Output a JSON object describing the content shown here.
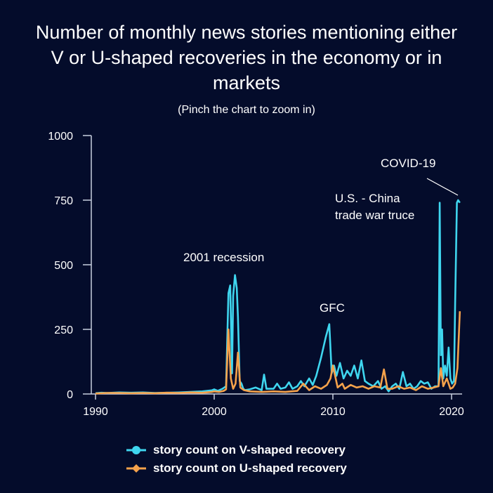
{
  "header": {
    "title": "Number of monthly news stories mentioning either V or U-shaped recoveries in the economy or in markets",
    "subtitle": "(Pinch the chart to zoom in)"
  },
  "chart_data": {
    "type": "line",
    "title": "Number of monthly news stories mentioning either V or U-shaped recoveries in the economy or in markets",
    "subtitle": "(Pinch the chart to zoom in)",
    "xlabel": "",
    "ylabel": "",
    "xlim": [
      1990,
      2021
    ],
    "ylim": [
      0,
      1000
    ],
    "xticks": [
      1990,
      2000,
      2010,
      2020
    ],
    "yticks": [
      0,
      250,
      500,
      750,
      1000
    ],
    "grid": false,
    "legend_position": "bottom",
    "series": [
      {
        "name": "story count on V-shaped recovery",
        "color": "#3fd6ef",
        "x": [
          1990.0,
          1990.5,
          1991.0,
          1992.0,
          1993.0,
          1994.0,
          1995.0,
          1996.0,
          1997.0,
          1998.0,
          1999.0,
          1999.8,
          2000.0,
          2000.3,
          2000.7,
          2001.0,
          2001.2,
          2001.35,
          2001.5,
          2001.6,
          2001.75,
          2001.9,
          2002.0,
          2002.15,
          2002.3,
          2002.45,
          2002.6,
          2003.0,
          2003.5,
          2004.0,
          2004.2,
          2004.4,
          2005.0,
          2005.3,
          2005.6,
          2006.0,
          2006.3,
          2006.6,
          2007.0,
          2007.3,
          2007.6,
          2008.0,
          2008.3,
          2008.6,
          2009.0,
          2009.4,
          2009.7,
          2009.9,
          2010.1,
          2010.3,
          2010.6,
          2010.9,
          2011.2,
          2011.5,
          2011.8,
          2012.1,
          2012.4,
          2012.7,
          2013.0,
          2013.4,
          2013.8,
          2014.1,
          2014.4,
          2014.7,
          2015.0,
          2015.3,
          2015.6,
          2015.9,
          2016.2,
          2016.5,
          2016.8,
          2017.1,
          2017.4,
          2017.7,
          2018.0,
          2018.3,
          2018.6,
          2018.9,
          2019.0,
          2019.1,
          2019.2,
          2019.3,
          2019.45,
          2019.6,
          2019.75,
          2019.9,
          2020.05,
          2020.2,
          2020.3,
          2020.45,
          2020.55,
          2020.7
        ],
        "y": [
          3,
          5,
          4,
          6,
          5,
          6,
          4,
          5,
          6,
          8,
          10,
          14,
          18,
          12,
          20,
          30,
          390,
          420,
          80,
          380,
          460,
          410,
          300,
          50,
          40,
          20,
          15,
          18,
          25,
          15,
          75,
          20,
          20,
          40,
          20,
          25,
          45,
          20,
          30,
          50,
          30,
          60,
          35,
          70,
          140,
          220,
          270,
          80,
          110,
          70,
          120,
          60,
          90,
          70,
          110,
          60,
          130,
          50,
          40,
          30,
          50,
          20,
          30,
          10,
          30,
          40,
          20,
          85,
          30,
          40,
          20,
          30,
          50,
          40,
          45,
          20,
          30,
          30,
          740,
          150,
          250,
          60,
          110,
          70,
          180,
          60,
          40,
          50,
          350,
          740,
          750,
          740
        ]
      },
      {
        "name": "story count on U-shaped recovery",
        "color": "#f5a24b",
        "x": [
          1990.0,
          1990.5,
          1991.0,
          1992.0,
          1993.0,
          1994.0,
          1995.0,
          1996.0,
          1997.0,
          1998.0,
          1999.0,
          1999.8,
          2000.0,
          2000.4,
          2000.8,
          2001.0,
          2001.2,
          2001.4,
          2001.6,
          2001.8,
          2002.0,
          2002.2,
          2002.5,
          2003.0,
          2004.0,
          2005.0,
          2006.0,
          2007.0,
          2007.5,
          2008.0,
          2008.5,
          2009.0,
          2009.5,
          2009.8,
          2010.0,
          2010.4,
          2010.8,
          2011.0,
          2011.5,
          2012.0,
          2012.5,
          2013.0,
          2013.5,
          2014.0,
          2014.3,
          2014.6,
          2015.0,
          2015.5,
          2016.0,
          2016.5,
          2017.0,
          2017.5,
          2018.0,
          2018.5,
          2018.9,
          2019.1,
          2019.3,
          2019.6,
          2019.9,
          2020.1,
          2020.3,
          2020.5,
          2020.7
        ],
        "y": [
          2,
          3,
          4,
          4,
          3,
          4,
          3,
          5,
          4,
          6,
          5,
          8,
          10,
          8,
          12,
          18,
          250,
          60,
          20,
          40,
          160,
          25,
          15,
          10,
          8,
          10,
          8,
          12,
          40,
          15,
          30,
          20,
          35,
          60,
          110,
          25,
          40,
          20,
          35,
          25,
          30,
          20,
          30,
          25,
          95,
          20,
          20,
          30,
          20,
          25,
          15,
          30,
          20,
          25,
          30,
          100,
          30,
          60,
          20,
          25,
          40,
          100,
          320
        ]
      }
    ],
    "annotations": [
      {
        "text": "2001 recession"
      },
      {
        "text": "GFC"
      },
      {
        "text": "U.S. - China"
      },
      {
        "text": "trade war truce"
      },
      {
        "text": "COVID-19"
      }
    ]
  },
  "legend": {
    "items": [
      {
        "label": "story count on V-shaped recovery",
        "color": "#3fd6ef"
      },
      {
        "label": "story count on U-shaped recovery",
        "color": "#f5a24b"
      }
    ]
  }
}
